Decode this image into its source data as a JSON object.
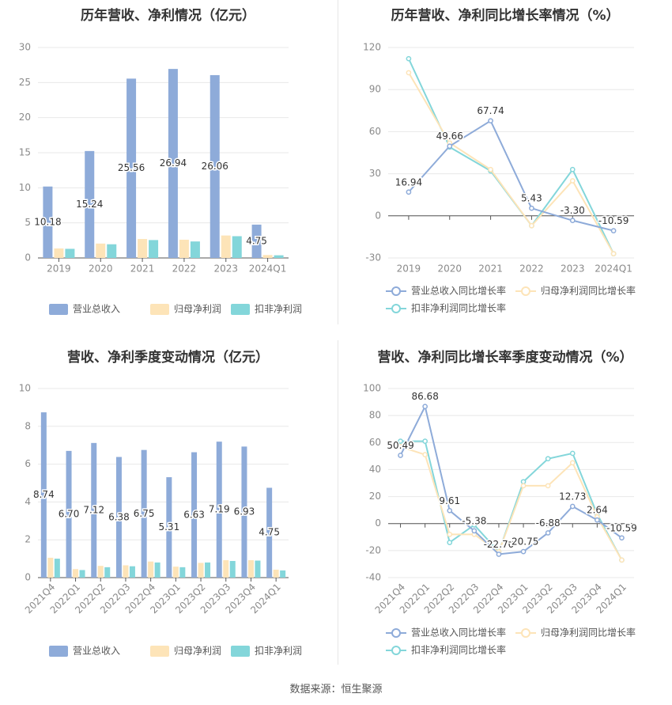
{
  "colors": {
    "revenue": "#8eabd9",
    "net_profit": "#fde4b8",
    "deducted_profit": "#83d6da",
    "axis_text": "#8a8a8a",
    "title": "#333333",
    "grid": "#e8e8e8",
    "label": "#333333"
  },
  "source_text": "数据来源：恒生聚源",
  "chart_data": [
    {
      "type": "bar",
      "title": "历年营收、净利情况（亿元）",
      "categories": [
        "2019",
        "2020",
        "2021",
        "2022",
        "2023",
        "2024Q1"
      ],
      "ylim": [
        0,
        30
      ],
      "yticks": [
        0,
        5,
        10,
        15,
        20,
        25,
        30
      ],
      "grid": true,
      "legend_position": "bottom",
      "series": [
        {
          "name": "营业总收入",
          "values": [
            10.18,
            15.24,
            25.56,
            26.94,
            26.06,
            4.75
          ],
          "labels": [
            "10.18",
            "15.24",
            "25.56",
            "26.94",
            "26.06",
            "4.75"
          ]
        },
        {
          "name": "归母净利润",
          "values": [
            1.35,
            2.05,
            2.7,
            2.6,
            3.2,
            0.42
          ]
        },
        {
          "name": "扣非净利润",
          "values": [
            1.3,
            1.95,
            2.55,
            2.35,
            3.1,
            0.38
          ]
        }
      ]
    },
    {
      "type": "line",
      "title": "历年营收、净利同比增长率情况（%）",
      "categories": [
        "2019",
        "2020",
        "2021",
        "2022",
        "2023",
        "2024Q1"
      ],
      "ylim": [
        -30,
        120
      ],
      "yticks": [
        -30,
        0,
        30,
        60,
        90,
        120
      ],
      "grid": true,
      "legend_position": "bottom",
      "series": [
        {
          "name": "营业总收入同比增长率",
          "values": [
            16.94,
            49.66,
            67.74,
            5.43,
            -3.3,
            -10.59
          ],
          "labels": [
            "16.94",
            "49.66",
            "67.74",
            "5.43",
            "-3.30",
            "-10.59"
          ]
        },
        {
          "name": "归母净利润同比增长率",
          "values": [
            102,
            52,
            33,
            -7,
            25,
            -27
          ]
        },
        {
          "name": "扣非净利润同比增长率",
          "values": [
            112,
            49,
            32,
            -7,
            33,
            -27
          ]
        }
      ]
    },
    {
      "type": "bar",
      "title": "营收、净利季度变动情况（亿元）",
      "categories": [
        "2021Q4",
        "2022Q1",
        "2022Q2",
        "2022Q3",
        "2022Q4",
        "2023Q1",
        "2023Q2",
        "2023Q3",
        "2023Q4",
        "2024Q1"
      ],
      "ylim": [
        0,
        10
      ],
      "yticks": [
        0,
        2,
        4,
        6,
        8,
        10
      ],
      "grid": true,
      "legend_position": "bottom",
      "series": [
        {
          "name": "营业总收入",
          "values": [
            8.74,
            6.7,
            7.12,
            6.38,
            6.75,
            5.31,
            6.63,
            7.19,
            6.93,
            4.75
          ],
          "labels": [
            "8.74",
            "6.70",
            "7.12",
            "6.38",
            "6.75",
            "5.31",
            "6.63",
            "7.19",
            "6.93",
            "4.75"
          ]
        },
        {
          "name": "归母净利润",
          "values": [
            1.05,
            0.45,
            0.62,
            0.65,
            0.85,
            0.58,
            0.78,
            0.92,
            0.92,
            0.42
          ]
        },
        {
          "name": "扣非净利润",
          "values": [
            1.0,
            0.4,
            0.55,
            0.6,
            0.8,
            0.55,
            0.8,
            0.88,
            0.9,
            0.38
          ]
        }
      ]
    },
    {
      "type": "line",
      "title": "营收、净利同比增长率季度变动情况（%）",
      "categories": [
        "2021Q4",
        "2022Q1",
        "2022Q2",
        "2022Q3",
        "2022Q4",
        "2023Q1",
        "2023Q2",
        "2023Q3",
        "2023Q4",
        "2024Q1"
      ],
      "ylim": [
        -40,
        100
      ],
      "yticks": [
        -40,
        -20,
        0,
        20,
        40,
        60,
        80,
        100
      ],
      "grid": true,
      "legend_position": "bottom",
      "series": [
        {
          "name": "营业总收入同比增长率",
          "values": [
            50.49,
            86.68,
            9.61,
            -5.38,
            -22.7,
            -20.75,
            -6.88,
            12.73,
            2.64,
            -10.59
          ],
          "labels": [
            "50.49",
            "86.68",
            "9.61",
            "-5.38",
            "-22.70",
            "-20.75",
            "-6.88",
            "12.73",
            "2.64",
            "-10.59"
          ]
        },
        {
          "name": "归母净利润同比增长率",
          "values": [
            57,
            51,
            -8,
            -8,
            -21,
            28,
            28,
            45,
            5,
            -27
          ]
        },
        {
          "name": "扣非净利润同比增长率",
          "values": [
            61,
            61,
            -14,
            -1,
            -21,
            31,
            48,
            52,
            7,
            -27
          ]
        }
      ]
    }
  ]
}
